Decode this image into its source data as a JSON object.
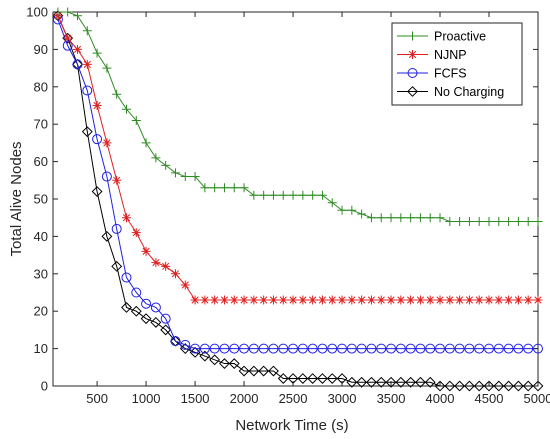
{
  "chart_data": {
    "type": "line",
    "xlabel": "Network Time (s)",
    "ylabel": "Total Alive Nodes",
    "xlim": [
      50,
      5000
    ],
    "ylim": [
      0,
      100
    ],
    "xticks": [
      500,
      1000,
      1500,
      2000,
      2500,
      3000,
      3500,
      4000,
      4500,
      5000
    ],
    "yticks": [
      0,
      10,
      20,
      30,
      40,
      50,
      60,
      70,
      80,
      90,
      100
    ],
    "grid": false,
    "legend_position": "top-right",
    "series": [
      {
        "name": "Proactive",
        "color": "#2e8b22",
        "marker": "plus",
        "x": [
          100,
          200,
          300,
          400,
          500,
          600,
          700,
          800,
          900,
          1000,
          1100,
          1200,
          1300,
          1400,
          1500,
          1600,
          1700,
          1800,
          1900,
          2000,
          2100,
          2200,
          2300,
          2400,
          2500,
          2600,
          2700,
          2800,
          2900,
          3000,
          3100,
          3200,
          3300,
          3400,
          3500,
          3600,
          3700,
          3800,
          3900,
          4000,
          4100,
          4200,
          4300,
          4400,
          4500,
          4600,
          4700,
          4800,
          4900,
          5000
        ],
        "y": [
          100,
          100,
          99,
          95,
          89,
          85,
          78,
          74,
          71,
          65,
          61,
          59,
          57,
          56,
          56,
          53,
          53,
          53,
          53,
          53,
          51,
          51,
          51,
          51,
          51,
          51,
          51,
          51,
          49,
          47,
          47,
          46,
          45,
          45,
          45,
          45,
          45,
          45,
          45,
          45,
          44,
          44,
          44,
          44,
          44,
          44,
          44,
          44,
          44,
          44
        ]
      },
      {
        "name": "NJNP",
        "color": "#e02020",
        "marker": "asterisk",
        "x": [
          100,
          200,
          300,
          400,
          500,
          600,
          700,
          800,
          900,
          1000,
          1100,
          1200,
          1300,
          1400,
          1500,
          1600,
          1700,
          1800,
          1900,
          2000,
          2100,
          2200,
          2300,
          2400,
          2500,
          2600,
          2700,
          2800,
          2900,
          3000,
          3100,
          3200,
          3300,
          3400,
          3500,
          3600,
          3700,
          3800,
          3900,
          4000,
          4100,
          4200,
          4300,
          4400,
          4500,
          4600,
          4700,
          4800,
          4900,
          5000
        ],
        "y": [
          99,
          93,
          90,
          86,
          75,
          65,
          55,
          45,
          41,
          36,
          33,
          32,
          30,
          27,
          23,
          23,
          23,
          23,
          23,
          23,
          23,
          23,
          23,
          23,
          23,
          23,
          23,
          23,
          23,
          23,
          23,
          23,
          23,
          23,
          23,
          23,
          23,
          23,
          23,
          23,
          23,
          23,
          23,
          23,
          23,
          23,
          23,
          23,
          23,
          23
        ]
      },
      {
        "name": "FCFS",
        "color": "#1f1fe6",
        "marker": "circle",
        "x": [
          100,
          200,
          300,
          400,
          500,
          600,
          700,
          800,
          900,
          1000,
          1100,
          1200,
          1300,
          1400,
          1500,
          1600,
          1700,
          1800,
          1900,
          2000,
          2100,
          2200,
          2300,
          2400,
          2500,
          2600,
          2700,
          2800,
          2900,
          3000,
          3100,
          3200,
          3300,
          3400,
          3500,
          3600,
          3700,
          3800,
          3900,
          4000,
          4100,
          4200,
          4300,
          4400,
          4500,
          4600,
          4700,
          4800,
          4900,
          5000
        ],
        "y": [
          98,
          91,
          86,
          79,
          66,
          56,
          42,
          29,
          25,
          22,
          21,
          18,
          12,
          11,
          10,
          10,
          10,
          10,
          10,
          10,
          10,
          10,
          10,
          10,
          10,
          10,
          10,
          10,
          10,
          10,
          10,
          10,
          10,
          10,
          10,
          10,
          10,
          10,
          10,
          10,
          10,
          10,
          10,
          10,
          10,
          10,
          10,
          10,
          10,
          10
        ]
      },
      {
        "name": "No Charging",
        "color": "#000000",
        "marker": "diamond",
        "x": [
          100,
          200,
          300,
          400,
          500,
          600,
          700,
          800,
          900,
          1000,
          1100,
          1200,
          1300,
          1400,
          1500,
          1600,
          1700,
          1800,
          1900,
          2000,
          2100,
          2200,
          2300,
          2400,
          2500,
          2600,
          2700,
          2800,
          2900,
          3000,
          3100,
          3200,
          3300,
          3400,
          3500,
          3600,
          3700,
          3800,
          3900,
          4000,
          4100,
          4200,
          4300,
          4400,
          4500,
          4600,
          4700,
          4800,
          4900,
          5000
        ],
        "y": [
          99,
          93,
          86,
          68,
          52,
          40,
          32,
          21,
          20,
          18,
          17,
          15,
          12,
          10,
          9,
          8,
          7,
          6,
          6,
          4,
          4,
          4,
          4,
          2,
          2,
          2,
          2,
          2,
          2,
          2,
          1,
          1,
          1,
          1,
          1,
          1,
          1,
          1,
          1,
          0,
          0,
          0,
          0,
          0,
          0,
          0,
          0,
          0,
          0,
          0
        ]
      }
    ]
  }
}
